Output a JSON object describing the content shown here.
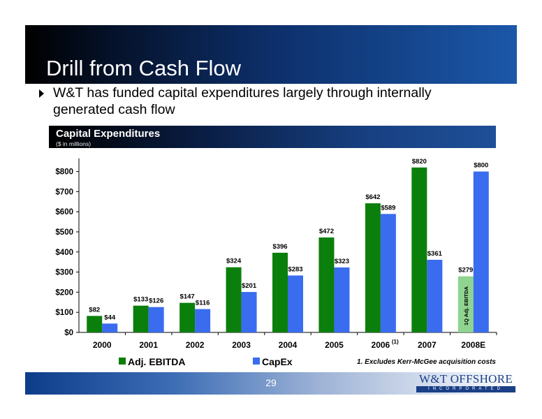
{
  "slide": {
    "title": "Drill from Cash Flow",
    "bullet": "W&T has funded capital expenditures largely through internally generated cash flow",
    "section_title": "Capital Expenditures",
    "section_subtitle": "($ in millions)",
    "footnote": "1. Excludes Kerr-McGee acquisition costs",
    "page_number": "29",
    "logo_text": "W&T OFFSHORE",
    "logo_subtext": "INCORPORATED"
  },
  "colors": {
    "ebitda": "#0b7f0b",
    "capex": "#3a6cf0",
    "ebitda_light": "#8fd48f"
  },
  "chart_data": {
    "type": "bar",
    "categories": [
      "2000",
      "2001",
      "2002",
      "2003",
      "2004",
      "2005",
      "2006",
      "2007",
      "2008E"
    ],
    "category_superscripts": [
      "",
      "",
      "",
      "",
      "",
      "",
      "(1)",
      "",
      ""
    ],
    "series": [
      {
        "name": "Adj. EBITDA",
        "values": [
          82,
          133,
          147,
          324,
          396,
          472,
          642,
          820,
          279
        ],
        "labels": [
          "$82",
          "$133",
          "$147",
          "$324",
          "$396",
          "$472",
          "$642",
          "$820",
          "$279"
        ]
      },
      {
        "name": "CapEx",
        "values": [
          44,
          126,
          116,
          201,
          283,
          323,
          589,
          361,
          800
        ],
        "labels": [
          "$44",
          "$126",
          "$116",
          "$201",
          "$283",
          "$323",
          "$589",
          "$361",
          "$800"
        ]
      }
    ],
    "ylim": [
      0,
      900
    ],
    "yticks": [
      0,
      100,
      200,
      300,
      400,
      500,
      600,
      700,
      800
    ],
    "ytick_labels": [
      "$0",
      "$100",
      "$200",
      "$300",
      "$400",
      "$500",
      "$600",
      "$700",
      "$800"
    ],
    "annotations": [
      {
        "category": "2008E",
        "series": "Adj. EBITDA",
        "text": "1Q Adj. EBITDA"
      }
    ],
    "legend_placement": "bottom-left",
    "grid": false
  }
}
